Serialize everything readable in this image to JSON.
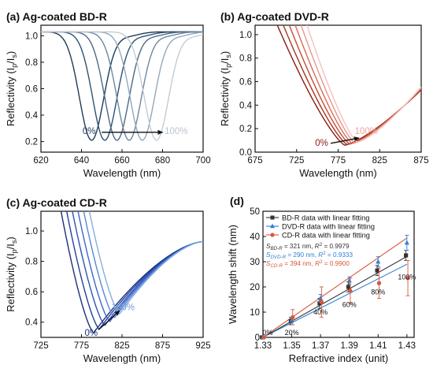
{
  "chart_data": [
    {
      "type": "line",
      "title": "(a) Ag-coated BD-R",
      "xlabel": "Wavelength (nm)",
      "ylabel": "Reflectivity (I",
      "ylabel_sub1": "p",
      "ylabel_mid": "/I",
      "ylabel_sub2": "s",
      "ylabel_end": ")",
      "xlim": [
        620,
        700
      ],
      "ylim": [
        0.12,
        1.08
      ],
      "xticks": [
        620,
        640,
        660,
        680,
        700
      ],
      "yticks": [
        0.2,
        0.4,
        0.6,
        0.8,
        1.0
      ],
      "xtick_labels": [
        "620",
        "640",
        "660",
        "680",
        "700"
      ],
      "ytick_labels": [
        "0.2",
        "0.4",
        "0.6",
        "0.8",
        "1.0"
      ],
      "start_label": "0%",
      "end_label": "100%",
      "arrow": {
        "from": [
          650,
          0.27
        ],
        "to": [
          680,
          0.27
        ]
      },
      "series": [
        {
          "min_x": 645.0,
          "min_y": 0.21,
          "width": 8.5,
          "color": "#1f3b57"
        },
        {
          "min_x": 651.5,
          "min_y": 0.21,
          "width": 8.5,
          "color": "#2f5172"
        },
        {
          "min_x": 657.5,
          "min_y": 0.21,
          "width": 8.5,
          "color": "#4a6a88"
        },
        {
          "min_x": 663.5,
          "min_y": 0.21,
          "width": 8.5,
          "color": "#6c87a0"
        },
        {
          "min_x": 670.0,
          "min_y": 0.21,
          "width": 8.5,
          "color": "#93a8b9"
        },
        {
          "min_x": 677.0,
          "min_y": 0.21,
          "width": 8.5,
          "color": "#c2ccd4"
        }
      ]
    },
    {
      "type": "line",
      "title": "(b) Ag-coated DVD-R",
      "xlabel": "Wavelength (nm)",
      "ylabel": "Reflectivity (I",
      "ylabel_sub1": "p",
      "ylabel_mid": "/I",
      "ylabel_sub2": "s",
      "ylabel_end": ")",
      "xlim": [
        675,
        875
      ],
      "ylim": [
        0.0,
        1.08
      ],
      "xticks": [
        675,
        725,
        775,
        825,
        875
      ],
      "yticks": [
        0.0,
        0.2,
        0.4,
        0.6,
        0.8,
        1.0
      ],
      "xtick_labels": [
        "675",
        "725",
        "775",
        "825",
        "875"
      ],
      "ytick_labels": [
        "0.0",
        "0.2",
        "0.4",
        "0.6",
        "0.8",
        "1.0"
      ],
      "start_label": "0%",
      "end_label": "100%",
      "arrow": {
        "from": [
          766,
          0.075
        ],
        "to": [
          800,
          0.12
        ]
      },
      "series": [
        {
          "min_x": 783,
          "min_y": 0.06,
          "color": "#8b1a10",
          "x0": 700
        },
        {
          "min_x": 786,
          "min_y": 0.065,
          "color": "#a83420",
          "x0": 707
        },
        {
          "min_x": 789,
          "min_y": 0.07,
          "color": "#c24a34",
          "x0": 714
        },
        {
          "min_x": 792,
          "min_y": 0.075,
          "color": "#d86c57",
          "x0": 721
        },
        {
          "min_x": 795,
          "min_y": 0.08,
          "color": "#e8958a",
          "x0": 728
        },
        {
          "min_x": 798,
          "min_y": 0.085,
          "color": "#f4c2bd",
          "x0": 735
        }
      ]
    },
    {
      "type": "line",
      "title": "(c) Ag-coated CD-R",
      "xlabel": "Wavelength (nm)",
      "ylabel": "Reflectivity (I",
      "ylabel_sub1": "p",
      "ylabel_mid": "/I",
      "ylabel_sub2": "s",
      "ylabel_end": ")",
      "xlim": [
        725,
        925
      ],
      "ylim": [
        0.3,
        1.13
      ],
      "xticks": [
        725,
        775,
        825,
        875,
        925
      ],
      "yticks": [
        0.4,
        0.6,
        0.8,
        1.0
      ],
      "xtick_labels": [
        "725",
        "775",
        "825",
        "875",
        "925"
      ],
      "ytick_labels": [
        "0.4",
        "0.6",
        "0.8",
        "1.0"
      ],
      "start_label": "0%",
      "end_label": "100%",
      "arrow": {
        "from": [
          796,
          0.35
        ],
        "to": [
          822,
          0.475
        ]
      },
      "series": [
        {
          "min_x": 790,
          "min_y": 0.33,
          "color": "#1b2f7a",
          "x0": 748
        },
        {
          "min_x": 797,
          "min_y": 0.355,
          "color": "#243f9a",
          "x0": 754
        },
        {
          "min_x": 804,
          "min_y": 0.38,
          "color": "#2d52b5",
          "x0": 760
        },
        {
          "min_x": 810,
          "min_y": 0.405,
          "color": "#3d67c9",
          "x0": 766
        },
        {
          "min_x": 816,
          "min_y": 0.43,
          "color": "#5a86d6",
          "x0": 772
        },
        {
          "min_x": 822,
          "min_y": 0.455,
          "color": "#86aee0",
          "x0": 778
        }
      ]
    },
    {
      "type": "scatter",
      "title": "(d)",
      "xlabel": "Refractive index (unit)",
      "ylabel": "Wavelength shift (nm)",
      "xlim": [
        1.33,
        1.435
      ],
      "ylim": [
        0,
        50
      ],
      "xticks": [
        1.33,
        1.35,
        1.37,
        1.39,
        1.41,
        1.43
      ],
      "yticks": [
        0,
        10,
        20,
        30,
        40,
        50
      ],
      "xtick_labels": [
        "1.33",
        "1.35",
        "1.37",
        "1.39",
        "1.41",
        "1.43"
      ],
      "ytick_labels": [
        "0",
        "10",
        "20",
        "30",
        "40",
        "50"
      ],
      "x": [
        1.33,
        1.35,
        1.37,
        1.39,
        1.41,
        1.43
      ],
      "point_labels": [
        "0%",
        "20%",
        "40%",
        "60%",
        "80%",
        "100%"
      ],
      "series": [
        {
          "name": "BD-R data with linear fitting",
          "color": "#333333",
          "marker": "square",
          "values": [
            0,
            6.5,
            13.5,
            20,
            26.5,
            32.5
          ],
          "errors": [
            0,
            1.5,
            2,
            2,
            2,
            2
          ],
          "fit": [
            0,
            6.4,
            12.8,
            19.3,
            25.7,
            32.1
          ]
        },
        {
          "name": "DVD-R data with linear fitting",
          "color": "#2e7fd6",
          "marker": "triangle",
          "values": [
            0,
            7,
            15.5,
            22.5,
            30,
            37.5
          ],
          "errors": [
            0,
            1,
            1.5,
            1.5,
            2,
            3
          ],
          "fit": [
            0,
            5.8,
            11.6,
            17.4,
            23.2,
            29.0
          ]
        },
        {
          "name": "CD-R data with linear fitting",
          "color": "#d45a3a",
          "marker": "circle",
          "values": [
            0,
            8,
            14,
            18.5,
            21.5,
            23.5
          ],
          "errors": [
            0,
            3,
            6,
            5,
            6,
            7
          ],
          "fit": [
            0,
            7.9,
            15.8,
            23.6,
            31.5,
            39.4
          ]
        }
      ],
      "fit_labels": [
        {
          "S": "S",
          "sub": "BD-R",
          "text": " = 321 nm, ",
          "R": "R",
          "sup": "2",
          "val": " = 0.9979",
          "color": "#333333"
        },
        {
          "S": "S",
          "sub": "DVD-R",
          "text": " = 290 nm, ",
          "R": "R",
          "sup": "2",
          "val": " = 0.9333",
          "color": "#2e7fd6"
        },
        {
          "S": "S",
          "sub": "CD-R",
          "text": " = 394 nm, ",
          "R": "R",
          "sup": "2",
          "val": " = 0.9900",
          "color": "#d45a3a"
        }
      ]
    }
  ]
}
